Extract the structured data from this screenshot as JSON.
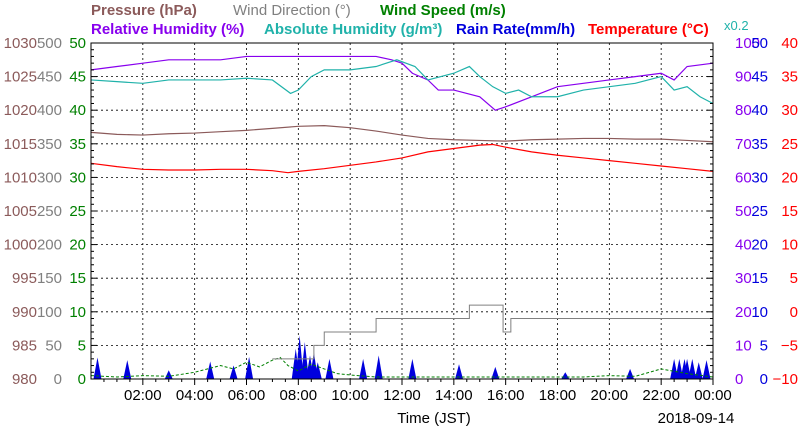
{
  "chart_data": {
    "type": "line",
    "date": "2018-09-14",
    "xlabel": "Time (JST)",
    "x_range": [
      "00:00",
      "24:00"
    ],
    "x_ticks": [
      "02:00",
      "04:00",
      "06:00",
      "08:00",
      "10:00",
      "12:00",
      "14:00",
      "16:00",
      "18:00",
      "20:00",
      "22:00",
      "00:00"
    ],
    "x_tick_hours": [
      2,
      4,
      6,
      8,
      10,
      12,
      14,
      16,
      18,
      20,
      22,
      24
    ],
    "grid": true,
    "legend": {
      "row1": [
        {
          "id": "pressure",
          "text": "Pressure (hPa)"
        },
        {
          "id": "wind_direction",
          "text": "Wind Direction (°)"
        },
        {
          "id": "wind_speed",
          "text": "Wind Speed (m/s)"
        }
      ],
      "row2": [
        {
          "id": "relative_humidity",
          "text": "Relative Humidity (%)"
        },
        {
          "id": "absolute_humidity",
          "text": "Absolute Humidity (g/m³)"
        },
        {
          "id": "rain_rate",
          "text": "Rain Rate(mm/h)"
        },
        {
          "id": "temperature",
          "text": "Temperature (°C)"
        }
      ],
      "scale_note": "x0.2"
    },
    "axes": {
      "pressure": {
        "color": "#8b5a5a",
        "min": 980,
        "max": 1030,
        "ticks": [
          "980",
          "985",
          "990",
          "995",
          "1000",
          "1005",
          "1010",
          "1015",
          "1020",
          "1025",
          "1030"
        ]
      },
      "wind_direction": {
        "color": "#808080",
        "min": 0,
        "max": 500,
        "ticks": [
          "0",
          "50",
          "100",
          "150",
          "200",
          "250",
          "300",
          "350",
          "400",
          "450",
          "500"
        ]
      },
      "wind_speed": {
        "color": "#008000",
        "min": 0,
        "max": 50,
        "ticks": [
          "0",
          "5",
          "10",
          "15",
          "20",
          "25",
          "30",
          "35",
          "40",
          "45",
          "50"
        ]
      },
      "relative_humidity": {
        "color": "#8800ee",
        "min": 0,
        "max": 100,
        "ticks": [
          "0",
          "10",
          "20",
          "30",
          "40",
          "50",
          "60",
          "70",
          "80",
          "90",
          "100"
        ]
      },
      "rain_rate": {
        "color": "#0000dd",
        "min": 0,
        "max": 50,
        "ticks": [
          "0",
          "5",
          "10",
          "15",
          "20",
          "25",
          "30",
          "35",
          "40",
          "45",
          "50"
        ]
      },
      "temperature": {
        "color": "#ff0000",
        "min": -10,
        "max": 40,
        "ticks": [
          "−10",
          "−5",
          "0",
          "5",
          "10",
          "15",
          "20",
          "25",
          "30",
          "35",
          "40"
        ]
      }
    },
    "series": [
      {
        "id": "pressure",
        "name": "Pressure (hPa)",
        "color": "#8b5a5a",
        "axis": "pressure",
        "x": [
          0,
          1,
          2,
          3,
          4,
          5,
          6,
          7,
          8,
          9,
          10,
          11,
          12,
          13,
          14,
          15,
          16,
          17,
          18,
          19,
          20,
          21,
          22,
          23,
          24
        ],
        "y": [
          1016.7,
          1016.4,
          1016.3,
          1016.5,
          1016.6,
          1016.8,
          1017.0,
          1017.3,
          1017.6,
          1017.7,
          1017.4,
          1016.9,
          1016.3,
          1015.8,
          1015.6,
          1015.5,
          1015.4,
          1015.6,
          1015.7,
          1015.8,
          1015.8,
          1015.7,
          1015.7,
          1015.5,
          1015.3
        ]
      },
      {
        "id": "temperature",
        "name": "Temperature (°C)",
        "color": "#ff0000",
        "axis": "temperature",
        "x": [
          0,
          1,
          2,
          3,
          4,
          5,
          6,
          7,
          7.6,
          8,
          9,
          10,
          11,
          12,
          13,
          14,
          15,
          15.5,
          16,
          17,
          18,
          19,
          20,
          21,
          22,
          23,
          24
        ],
        "y": [
          22.1,
          21.6,
          21.2,
          21.1,
          21.1,
          21.2,
          21.2,
          21.0,
          20.7,
          20.9,
          21.3,
          21.8,
          22.3,
          22.9,
          23.8,
          24.3,
          24.8,
          24.9,
          24.5,
          23.8,
          23.3,
          22.9,
          22.5,
          22.1,
          21.7,
          21.3,
          20.9
        ]
      },
      {
        "id": "relative_humidity",
        "name": "Relative Humidity (%)",
        "color": "#8800ee",
        "axis": "relative_humidity",
        "x": [
          0,
          1,
          2,
          3,
          4,
          5,
          6,
          7,
          8,
          9,
          10,
          11,
          11.6,
          12,
          12.4,
          13,
          13.4,
          14,
          15,
          15.6,
          16,
          17,
          18,
          19,
          20,
          21,
          22,
          22.5,
          23,
          24
        ],
        "y": [
          92,
          93,
          94,
          95,
          95,
          95,
          96,
          96,
          96,
          96,
          96,
          96,
          95,
          94,
          91,
          89,
          86,
          86,
          84,
          80,
          81,
          84,
          87,
          88,
          89,
          90,
          91,
          89,
          93,
          94
        ]
      },
      {
        "id": "absolute_humidity",
        "name": "Absolute Humidity (g/m³)",
        "color": "#20b2aa",
        "axis": "relative_humidity",
        "x": [
          0,
          1,
          2,
          3,
          4,
          5,
          6,
          7,
          7.7,
          8,
          8.5,
          9,
          10,
          11,
          11.8,
          12.5,
          13,
          14,
          14.6,
          15,
          15.5,
          16,
          16.5,
          17,
          18,
          19,
          20,
          21,
          22,
          22.5,
          23,
          23.5,
          24
        ],
        "y": [
          89,
          88.5,
          88,
          89,
          89,
          89,
          89.5,
          89,
          85,
          86,
          90,
          92,
          92,
          93,
          95,
          93,
          89,
          91,
          93,
          90,
          87,
          85,
          86,
          84,
          84,
          86,
          87,
          88,
          90,
          86,
          87,
          84,
          82
        ]
      }
    ],
    "wind_direction_steps": {
      "color": "#808080",
      "x": [
        7,
        8,
        8.6,
        9,
        10,
        11,
        12,
        13,
        13.9,
        14.6,
        15.2,
        15.9,
        16.2,
        18,
        20,
        22,
        23,
        24
      ],
      "y": [
        30,
        30,
        50,
        70,
        70,
        90,
        90,
        90,
        90,
        110,
        110,
        70,
        90,
        90,
        90,
        90,
        90,
        90
      ]
    },
    "wind_speed_trace": {
      "color": "#008000",
      "x": [
        0,
        1,
        2,
        3,
        4,
        5,
        5.5,
        6,
        6.5,
        7,
        7.3,
        7.6,
        8,
        8.5,
        9,
        9.5,
        10,
        11,
        12,
        13,
        14,
        15,
        16,
        17,
        18,
        19,
        20,
        21,
        22,
        23,
        24
      ],
      "y": [
        0.5,
        0.3,
        0.5,
        0.4,
        1.0,
        2.0,
        1.5,
        2.5,
        1.8,
        2.8,
        3.2,
        2.0,
        1.2,
        2.2,
        1.5,
        0.8,
        0.6,
        0.3,
        0.3,
        0.3,
        0.3,
        0.3,
        0.3,
        0.3,
        0.3,
        0.3,
        0.5,
        0.4,
        1.5,
        0.8,
        0.3
      ]
    },
    "rain_events": {
      "color": "#0000dd",
      "points": [
        [
          0.25,
          3.2
        ],
        [
          1.4,
          2.8
        ],
        [
          3.0,
          1.3
        ],
        [
          4.6,
          2.6
        ],
        [
          5.5,
          2.0
        ],
        [
          6.1,
          3.3
        ],
        [
          7.9,
          4.5
        ],
        [
          8.05,
          6.5
        ],
        [
          8.25,
          5.5
        ],
        [
          8.45,
          3.5
        ],
        [
          8.6,
          4.0
        ],
        [
          8.75,
          2.5
        ],
        [
          9.2,
          3.0
        ],
        [
          10.5,
          3.0
        ],
        [
          11.1,
          3.5
        ],
        [
          12.4,
          3.0
        ],
        [
          14.2,
          2.2
        ],
        [
          15.6,
          1.8
        ],
        [
          18.3,
          1.0
        ],
        [
          20.8,
          1.5
        ],
        [
          22.5,
          3.0
        ],
        [
          22.7,
          3.0
        ],
        [
          22.9,
          3.0
        ],
        [
          23.0,
          3.0
        ],
        [
          23.2,
          3.0
        ],
        [
          23.45,
          2.5
        ],
        [
          23.75,
          2.8
        ]
      ]
    }
  }
}
